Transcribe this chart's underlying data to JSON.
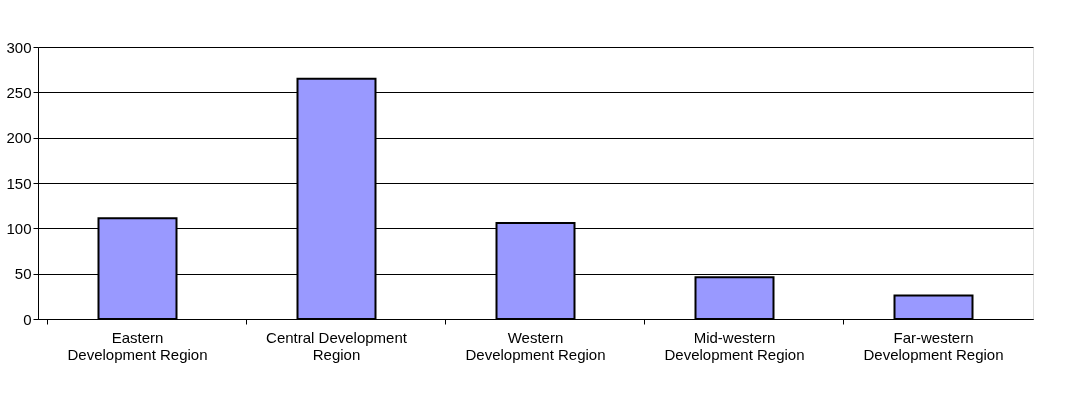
{
  "chart_data": {
    "type": "bar",
    "categories": [
      "Eastern\nDevelopment Region",
      "Central Development\nRegion",
      "Western\nDevelopment Region",
      "Mid-western\nDevelopment Region",
      "Far-western\nDevelopment Region"
    ],
    "values": [
      111,
      265,
      106,
      46,
      26
    ],
    "color": "#9999ff",
    "ylim": [
      0,
      300
    ],
    "yticks": [
      0,
      50,
      100,
      150,
      200,
      250,
      300
    ],
    "grid": "y"
  }
}
